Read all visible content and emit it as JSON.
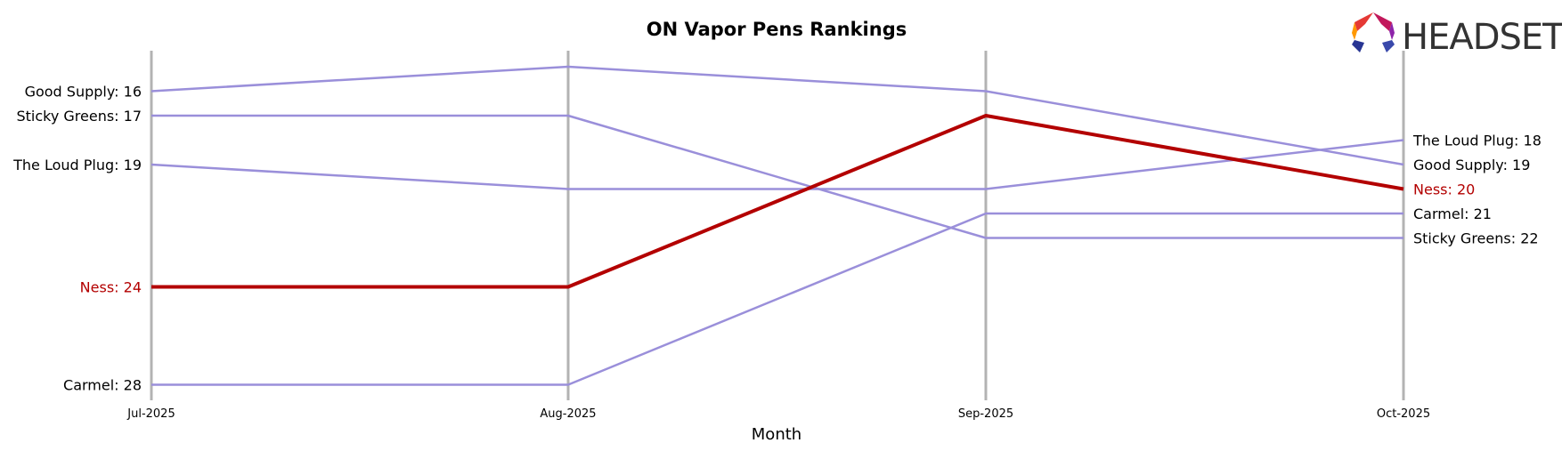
{
  "logo": {
    "text": "HEADSET"
  },
  "chart_data": {
    "type": "line",
    "title": "ON Vapor Pens Rankings",
    "xlabel": "Month",
    "ylabel": "",
    "x": [
      "Jul-2025",
      "Aug-2025",
      "Sep-2025",
      "Oct-2025"
    ],
    "ylim": [
      14.7,
      29.2
    ],
    "y_inverted": true,
    "grid": "vertical lines at each month",
    "highlight_color": "#b30000",
    "series_color": "#9a8fda",
    "label_color": "#000000",
    "axis_line_color": "#b3b3b3",
    "series": [
      {
        "name": "Good Supply",
        "values": [
          16,
          15,
          16,
          19
        ],
        "highlight": false
      },
      {
        "name": "Sticky Greens",
        "values": [
          17,
          17,
          22,
          22
        ],
        "highlight": false
      },
      {
        "name": "The Loud Plug",
        "values": [
          19,
          20,
          20,
          18
        ],
        "highlight": false
      },
      {
        "name": "Carmel",
        "values": [
          28,
          28,
          21,
          21
        ],
        "highlight": false
      },
      {
        "name": "Ness",
        "values": [
          24,
          24,
          17,
          20
        ],
        "highlight": true
      }
    ],
    "start_labels": [
      {
        "text": "Good Supply: 16",
        "value": 16,
        "highlight": false
      },
      {
        "text": "Sticky Greens: 17",
        "value": 17,
        "highlight": false
      },
      {
        "text": "The Loud Plug: 19",
        "value": 19,
        "highlight": false
      },
      {
        "text": "Ness: 24",
        "value": 24,
        "highlight": true
      },
      {
        "text": "Carmel: 28",
        "value": 28,
        "highlight": false
      }
    ],
    "end_labels": [
      {
        "text": "The Loud Plug: 18",
        "value": 18,
        "highlight": false
      },
      {
        "text": "Good Supply: 19",
        "value": 19,
        "highlight": false
      },
      {
        "text": "Ness: 20",
        "value": 20,
        "highlight": true
      },
      {
        "text": "Carmel: 21",
        "value": 21,
        "highlight": false
      },
      {
        "text": "Sticky Greens: 22",
        "value": 22,
        "highlight": false
      }
    ]
  }
}
